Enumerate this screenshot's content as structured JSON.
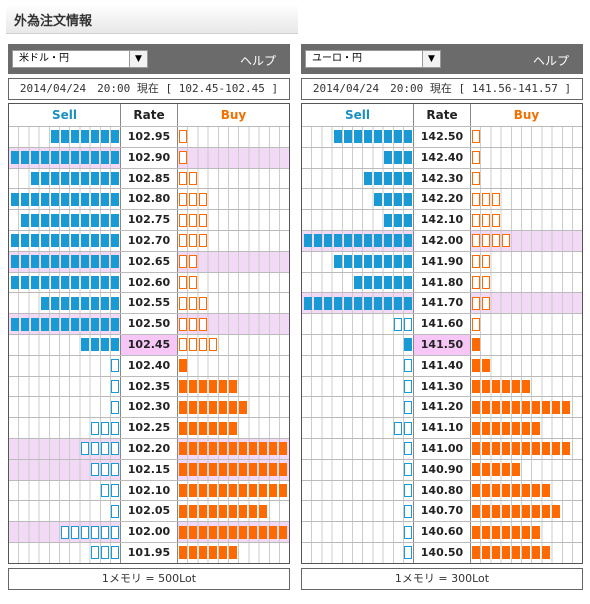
{
  "page_title": "外為注文情報",
  "panels": [
    {
      "pair": "米ドル・円",
      "help": "ヘルプ",
      "timestamp": "2014/04/24　20:00 現在 [ 102.45-102.45 ]",
      "headers": {
        "sell": "Sell",
        "rate": "Rate",
        "buy": "Buy"
      },
      "unit": "1メモリ = 500Lot",
      "rows": [
        {
          "rate": "102.95",
          "sell": 7,
          "sell_open": false,
          "buy": 1,
          "buy_open": true,
          "hl": false
        },
        {
          "rate": "102.90",
          "sell": 11,
          "sell_open": false,
          "buy": 1,
          "buy_open": true,
          "hl": true
        },
        {
          "rate": "102.85",
          "sell": 9,
          "sell_open": false,
          "buy": 2,
          "buy_open": true,
          "hl": false
        },
        {
          "rate": "102.80",
          "sell": 11,
          "sell_open": false,
          "buy": 3,
          "buy_open": true,
          "hl": false
        },
        {
          "rate": "102.75",
          "sell": 10,
          "sell_open": false,
          "buy": 3,
          "buy_open": true,
          "hl": false
        },
        {
          "rate": "102.70",
          "sell": 11,
          "sell_open": false,
          "buy": 3,
          "buy_open": true,
          "hl": false
        },
        {
          "rate": "102.65",
          "sell": 11,
          "sell_open": false,
          "buy": 2,
          "buy_open": true,
          "hl": true
        },
        {
          "rate": "102.60",
          "sell": 11,
          "sell_open": false,
          "buy": 2,
          "buy_open": true,
          "hl": false
        },
        {
          "rate": "102.55",
          "sell": 8,
          "sell_open": false,
          "buy": 3,
          "buy_open": true,
          "hl": false
        },
        {
          "rate": "102.50",
          "sell": 11,
          "sell_open": false,
          "buy": 3,
          "buy_open": true,
          "hl": true
        },
        {
          "rate": "102.45",
          "sell": 4,
          "sell_open": false,
          "buy": 4,
          "buy_open": true,
          "hl": false,
          "current": true
        },
        {
          "rate": "102.40",
          "sell": 1,
          "sell_open": true,
          "buy": 1,
          "buy_open": false,
          "hl": false
        },
        {
          "rate": "102.35",
          "sell": 1,
          "sell_open": true,
          "buy": 6,
          "buy_open": false,
          "hl": false
        },
        {
          "rate": "102.30",
          "sell": 1,
          "sell_open": true,
          "buy": 7,
          "buy_open": false,
          "hl": false
        },
        {
          "rate": "102.25",
          "sell": 3,
          "sell_open": true,
          "buy": 6,
          "buy_open": false,
          "hl": false
        },
        {
          "rate": "102.20",
          "sell": 4,
          "sell_open": true,
          "buy": 11,
          "buy_open": false,
          "hl": true
        },
        {
          "rate": "102.15",
          "sell": 3,
          "sell_open": true,
          "buy": 11,
          "buy_open": false,
          "hl": true
        },
        {
          "rate": "102.10",
          "sell": 2,
          "sell_open": true,
          "buy": 11,
          "buy_open": false,
          "hl": false
        },
        {
          "rate": "102.05",
          "sell": 1,
          "sell_open": true,
          "buy": 9,
          "buy_open": false,
          "hl": false
        },
        {
          "rate": "102.00",
          "sell": 6,
          "sell_open": true,
          "buy": 11,
          "buy_open": false,
          "hl": true
        },
        {
          "rate": "101.95",
          "sell": 3,
          "sell_open": true,
          "buy": 6,
          "buy_open": false,
          "hl": false
        }
      ]
    },
    {
      "pair": "ユーロ・円",
      "help": "ヘルプ",
      "timestamp": "2014/04/24　20:00 現在 [ 141.56-141.57 ]",
      "headers": {
        "sell": "Sell",
        "rate": "Rate",
        "buy": "Buy"
      },
      "unit": "1メモリ = 300Lot",
      "rows": [
        {
          "rate": "142.50",
          "sell": 8,
          "sell_open": false,
          "buy": 1,
          "buy_open": true,
          "hl": false
        },
        {
          "rate": "142.40",
          "sell": 3,
          "sell_open": false,
          "buy": 1,
          "buy_open": true,
          "hl": false
        },
        {
          "rate": "142.30",
          "sell": 5,
          "sell_open": false,
          "buy": 1,
          "buy_open": true,
          "hl": false
        },
        {
          "rate": "142.20",
          "sell": 4,
          "sell_open": false,
          "buy": 3,
          "buy_open": true,
          "hl": false
        },
        {
          "rate": "142.10",
          "sell": 3,
          "sell_open": false,
          "buy": 3,
          "buy_open": true,
          "hl": false
        },
        {
          "rate": "142.00",
          "sell": 11,
          "sell_open": false,
          "buy": 4,
          "buy_open": true,
          "hl": true
        },
        {
          "rate": "141.90",
          "sell": 8,
          "sell_open": false,
          "buy": 2,
          "buy_open": true,
          "hl": false
        },
        {
          "rate": "141.80",
          "sell": 6,
          "sell_open": false,
          "buy": 2,
          "buy_open": true,
          "hl": false
        },
        {
          "rate": "141.70",
          "sell": 11,
          "sell_open": false,
          "buy": 2,
          "buy_open": true,
          "hl": true
        },
        {
          "rate": "141.60",
          "sell": 2,
          "sell_open": true,
          "buy": 1,
          "buy_open": true,
          "hl": false
        },
        {
          "rate": "141.50",
          "sell": 1,
          "sell_open": false,
          "buy": 1,
          "buy_open": false,
          "hl": false,
          "current": true
        },
        {
          "rate": "141.40",
          "sell": 1,
          "sell_open": true,
          "buy": 2,
          "buy_open": false,
          "hl": false
        },
        {
          "rate": "141.30",
          "sell": 1,
          "sell_open": true,
          "buy": 6,
          "buy_open": false,
          "hl": false
        },
        {
          "rate": "141.20",
          "sell": 1,
          "sell_open": true,
          "buy": 10,
          "buy_open": false,
          "hl": false
        },
        {
          "rate": "141.10",
          "sell": 2,
          "sell_open": true,
          "buy": 7,
          "buy_open": false,
          "hl": false
        },
        {
          "rate": "141.00",
          "sell": 1,
          "sell_open": true,
          "buy": 10,
          "buy_open": false,
          "hl": false
        },
        {
          "rate": "140.90",
          "sell": 1,
          "sell_open": true,
          "buy": 5,
          "buy_open": false,
          "hl": false
        },
        {
          "rate": "140.80",
          "sell": 1,
          "sell_open": true,
          "buy": 8,
          "buy_open": false,
          "hl": false
        },
        {
          "rate": "140.70",
          "sell": 1,
          "sell_open": true,
          "buy": 9,
          "buy_open": false,
          "hl": false
        },
        {
          "rate": "140.60",
          "sell": 1,
          "sell_open": true,
          "buy": 7,
          "buy_open": false,
          "hl": false
        },
        {
          "rate": "140.50",
          "sell": 1,
          "sell_open": true,
          "buy": 8,
          "buy_open": false,
          "hl": false
        }
      ]
    }
  ]
}
